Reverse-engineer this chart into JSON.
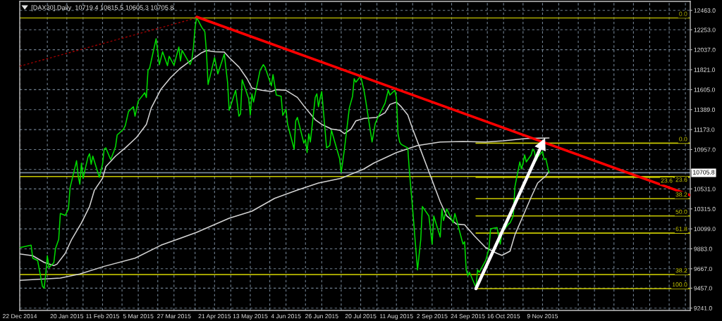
{
  "chart_data": {
    "type": "line",
    "title": "[DAX30],Daily  10719.4 10815.5 10605.3 10705.8",
    "xlim": [
      "2014-12-22",
      "2016-02-08"
    ],
    "ylim": [
      9216,
      12560
    ],
    "xticks": [
      {
        "value": "2014-12-22",
        "label": "22 Dec 2014"
      },
      {
        "value": "2015-01-08",
        "label": null
      },
      {
        "value": "2015-01-20",
        "label": "20 Jan 2015"
      },
      {
        "value": "2015-01-30",
        "label": null
      },
      {
        "value": "2015-02-11",
        "label": "11 Feb 2015"
      },
      {
        "value": "2015-02-23",
        "label": null
      },
      {
        "value": "2015-03-05",
        "label": "5 Mar 2015"
      },
      {
        "value": "2015-03-17",
        "label": null
      },
      {
        "value": "2015-03-27",
        "label": "27 Mar 2015"
      },
      {
        "value": "2015-04-09",
        "label": null
      },
      {
        "value": "2015-04-21",
        "label": "21 Apr 2015"
      },
      {
        "value": "2015-05-01",
        "label": null
      },
      {
        "value": "2015-05-13",
        "label": "13 May 2015"
      },
      {
        "value": "2015-05-25",
        "label": null
      },
      {
        "value": "2015-06-04",
        "label": "4 Jun 2015"
      },
      {
        "value": "2015-06-16",
        "label": null
      },
      {
        "value": "2015-06-26",
        "label": "26 Jun 2015"
      },
      {
        "value": "2015-07-08",
        "label": null
      },
      {
        "value": "2015-07-20",
        "label": "20 Jul 2015"
      },
      {
        "value": "2015-07-30",
        "label": null
      },
      {
        "value": "2015-08-11",
        "label": "11 Aug 2015"
      },
      {
        "value": "2015-08-21",
        "label": null
      },
      {
        "value": "2015-09-02",
        "label": "2 Sep 2015"
      },
      {
        "value": "2015-09-14",
        "label": null
      },
      {
        "value": "2015-09-24",
        "label": "24 Sep 2015"
      },
      {
        "value": "2015-10-06",
        "label": null
      },
      {
        "value": "2015-10-16",
        "label": "16 Oct 2015"
      },
      {
        "value": "2015-10-28",
        "label": null
      },
      {
        "value": "2015-11-09",
        "label": "9 Nov 2015"
      },
      {
        "value": "2015-11-19",
        "label": null
      },
      {
        "value": "2015-12-01",
        "label": null
      },
      {
        "value": "2015-12-11",
        "label": null
      },
      {
        "value": "2015-12-23",
        "label": null
      },
      {
        "value": "2016-01-04",
        "label": null
      },
      {
        "value": "2016-01-14",
        "label": null
      },
      {
        "value": "2016-01-26",
        "label": null
      },
      {
        "value": "2016-02-05",
        "label": null
      }
    ],
    "yticks": [
      {
        "value": 9241,
        "label": "9241.0"
      },
      {
        "value": 9457,
        "label": "9457.0"
      },
      {
        "value": 9667,
        "label": "9667.0"
      },
      {
        "value": 9883,
        "label": "9883.0"
      },
      {
        "value": 10099,
        "label": "10099.0"
      },
      {
        "value": 10315,
        "label": "10315.0"
      },
      {
        "value": 10531,
        "label": "10531.0"
      },
      {
        "value": 10741,
        "label": null
      },
      {
        "value": 10957,
        "label": "10957.0"
      },
      {
        "value": 11173,
        "label": "11173.0"
      },
      {
        "value": 11389,
        "label": "11389.0"
      },
      {
        "value": 11605,
        "label": "11605.0"
      },
      {
        "value": 11821,
        "label": "11821.0"
      },
      {
        "value": 12037,
        "label": "12037.0"
      },
      {
        "value": 12253,
        "label": "12253.0"
      },
      {
        "value": 12463,
        "label": "12463.0"
      }
    ],
    "grid": true,
    "ref_lines": [
      {
        "axis": "y",
        "value": 10705.8,
        "label": "10705.8",
        "color": "#778899"
      }
    ],
    "series": [
      {
        "name": "0.0",
        "color": "#a8a800",
        "x": [
          "2014-12-22",
          "2016-02-08"
        ],
        "values": [
          12381,
          12381
        ]
      },
      {
        "name": "23.6",
        "color": "#c8c800",
        "x": [
          "2014-12-22",
          "2016-02-08"
        ],
        "values": [
          10665,
          10665
        ]
      },
      {
        "name": "38.2",
        "color": "#d8d800",
        "x": [
          "2014-12-22",
          "2016-02-08"
        ],
        "values": [
          9604,
          9604
        ]
      },
      {
        "name": "0.0",
        "color": "#c8c800",
        "x": [
          "2015-09-29",
          "2016-02-08"
        ],
        "values": [
          11026,
          11026
        ]
      },
      {
        "name": "23.6",
        "color": "#c8c800",
        "x": [
          "2015-09-29",
          "2016-02-08"
        ],
        "values": [
          10655,
          10655
        ]
      },
      {
        "name": "38.2",
        "color": "#c8c800",
        "x": [
          "2015-09-29",
          "2016-02-08"
        ],
        "values": [
          10425,
          10425
        ]
      },
      {
        "name": "50.0",
        "color": "#c8c800",
        "x": [
          "2015-09-29",
          "2016-02-08"
        ],
        "values": [
          10239,
          10239
        ]
      },
      {
        "name": "61.8",
        "color": "#c8c800",
        "x": [
          "2015-09-29",
          "2016-02-08"
        ],
        "values": [
          10053,
          10053
        ]
      },
      {
        "name": "100.0",
        "color": "#c8c800",
        "x": [
          "2015-09-29",
          "2016-02-08"
        ],
        "values": [
          9452,
          9452
        ]
      },
      {
        "color": "#d3d3d3",
        "x": [
          "2014-12-22",
          "2015-01-16",
          "2015-01-28",
          "2015-02-12",
          "2015-03-03",
          "2015-03-19",
          "2015-04-10",
          "2015-04-30",
          "2015-05-14",
          "2015-05-28",
          "2015-06-11",
          "2015-06-24",
          "2015-07-08",
          "2015-07-22",
          "2015-07-28",
          "2015-08-11",
          "2015-08-24",
          "2015-09-07",
          "2015-09-21",
          "2015-10-05",
          "2015-10-16",
          "2015-10-30",
          "2015-11-13"
        ],
        "values": [
          9541,
          9566,
          9610,
          9693,
          9782,
          9922,
          10061,
          10214,
          10290,
          10429,
          10518,
          10595,
          10646,
          10747,
          10810,
          10924,
          11001,
          11039,
          11044,
          11039,
          11052,
          11077,
          11082
        ]
      },
      {
        "color": "#d3d3d3",
        "x": [
          "2014-12-22",
          "2014-12-30",
          "2015-01-06",
          "2015-01-12",
          "2015-01-14",
          "2015-01-19",
          "2015-01-23",
          "2015-01-29",
          "2015-02-03",
          "2015-02-06",
          "2015-02-11",
          "2015-02-13",
          "2015-02-19",
          "2015-02-25",
          "2015-03-04",
          "2015-03-10",
          "2015-03-13",
          "2015-03-19",
          "2015-03-25",
          "2015-03-31",
          "2015-04-07",
          "2015-04-13",
          "2015-04-16",
          "2015-04-21",
          "2015-04-27",
          "2015-04-30",
          "2015-05-06",
          "2015-05-11",
          "2015-05-14",
          "2015-05-20",
          "2015-05-26",
          "2015-05-29",
          "2015-06-04",
          "2015-06-11",
          "2015-06-16",
          "2015-06-22",
          "2015-06-26",
          "2015-07-02",
          "2015-07-07",
          "2015-07-10",
          "2015-07-14",
          "2015-07-17",
          "2015-07-22",
          "2015-07-30",
          "2015-08-04",
          "2015-08-07",
          "2015-08-11",
          "2015-08-14",
          "2015-08-18",
          "2015-08-21",
          "2015-08-26",
          "2015-09-01",
          "2015-09-07",
          "2015-09-11",
          "2015-09-17",
          "2015-09-22",
          "2015-09-28",
          "2015-10-05",
          "2015-10-12",
          "2015-10-15",
          "2015-10-20",
          "2015-10-23",
          "2015-10-28",
          "2015-11-02",
          "2015-11-06",
          "2015-11-11",
          "2015-11-13"
        ],
        "values": [
          9828,
          9808,
          9736,
          9701,
          9718,
          9833,
          9985,
          10163,
          10341,
          10518,
          10646,
          10772,
          10886,
          10975,
          11090,
          11229,
          11407,
          11610,
          11737,
          11838,
          11928,
          12004,
          12029,
          12016,
          12011,
          11953,
          11851,
          11724,
          11623,
          11598,
          11585,
          11605,
          11598,
          11521,
          11407,
          11280,
          11229,
          11179,
          11166,
          11128,
          11179,
          11267,
          11293,
          11305,
          11356,
          11445,
          11471,
          11420,
          11331,
          11179,
          10950,
          10671,
          10391,
          10239,
          10150,
          10143,
          10023,
          9896,
          9833,
          9812,
          9858,
          10036,
          10239,
          10442,
          10595,
          10671,
          10722
        ]
      },
      {
        "color": "#00dd00",
        "x": [
          "2014-12-22",
          "2014-12-29",
          "2014-12-30",
          "2015-01-02",
          "2015-01-05",
          "2015-01-06",
          "2015-01-07",
          "2015-01-08",
          "2015-01-09",
          "2015-01-12",
          "2015-01-13",
          "2015-01-15",
          "2015-01-16",
          "2015-01-19",
          "2015-01-21",
          "2015-01-22",
          "2015-01-26",
          "2015-01-27",
          "2015-01-28",
          "2015-01-29",
          "2015-01-30",
          "2015-02-02",
          "2015-02-03",
          "2015-02-04",
          "2015-02-05",
          "2015-02-09",
          "2015-02-11",
          "2015-02-12",
          "2015-02-13",
          "2015-02-16",
          "2015-02-18",
          "2015-02-19",
          "2015-02-20",
          "2015-02-24",
          "2015-02-25",
          "2015-02-27",
          "2015-03-02",
          "2015-03-03",
          "2015-03-05",
          "2015-03-09",
          "2015-03-10",
          "2015-03-11",
          "2015-03-12",
          "2015-03-16",
          "2015-03-18",
          "2015-03-20",
          "2015-03-23",
          "2015-03-24",
          "2015-03-27",
          "2015-03-30",
          "2015-03-31",
          "2015-04-01",
          "2015-04-06",
          "2015-04-07",
          "2015-04-08",
          "2015-04-09",
          "2015-04-10",
          "2015-04-13",
          "2015-04-15",
          "2015-04-16",
          "2015-04-17",
          "2015-04-21",
          "2015-04-23",
          "2015-04-27",
          "2015-04-29",
          "2015-04-30",
          "2015-05-04",
          "2015-05-06",
          "2015-05-07",
          "2015-05-08",
          "2015-05-12",
          "2015-05-13",
          "2015-05-14",
          "2015-05-15",
          "2015-05-19",
          "2015-05-21",
          "2015-05-22",
          "2015-05-26",
          "2015-05-27",
          "2015-05-29",
          "2015-06-01",
          "2015-06-02",
          "2015-06-04",
          "2015-06-05",
          "2015-06-09",
          "2015-06-10",
          "2015-06-11",
          "2015-06-15",
          "2015-06-16",
          "2015-06-17",
          "2015-06-18",
          "2015-06-19",
          "2015-06-22",
          "2015-06-23",
          "2015-06-24",
          "2015-06-25",
          "2015-06-26",
          "2015-06-29",
          "2015-07-01",
          "2015-07-02",
          "2015-07-03",
          "2015-07-07",
          "2015-07-08",
          "2015-07-10",
          "2015-07-13",
          "2015-07-15",
          "2015-07-16",
          "2015-07-17",
          "2015-07-20",
          "2015-07-22",
          "2015-07-23",
          "2015-07-27",
          "2015-07-29",
          "2015-07-31",
          "2015-08-04",
          "2015-08-06",
          "2015-08-07",
          "2015-08-10",
          "2015-08-11",
          "2015-08-12",
          "2015-08-13",
          "2015-08-14",
          "2015-08-18",
          "2015-08-19",
          "2015-08-21",
          "2015-08-24",
          "2015-08-26",
          "2015-08-27",
          "2015-08-31",
          "2015-09-02",
          "2015-09-03",
          "2015-09-07",
          "2015-09-08",
          "2015-09-09",
          "2015-09-11",
          "2015-09-15",
          "2015-09-16",
          "2015-09-17",
          "2015-09-21",
          "2015-09-22",
          "2015-09-23",
          "2015-09-24",
          "2015-09-25",
          "2015-09-29",
          "2015-09-30",
          "2015-10-01",
          "2015-10-05",
          "2015-10-07",
          "2015-10-08",
          "2015-10-12",
          "2015-10-14",
          "2015-10-15",
          "2015-10-19",
          "2015-10-20",
          "2015-10-22",
          "2015-10-23",
          "2015-10-26",
          "2015-10-27",
          "2015-10-28",
          "2015-10-29",
          "2015-10-30",
          "2015-11-02",
          "2015-11-03",
          "2015-11-04",
          "2015-11-05",
          "2015-11-06",
          "2015-11-09",
          "2015-11-10",
          "2015-11-11",
          "2015-11-13"
        ],
        "values": [
          9896,
          9922,
          9782,
          9757,
          9477,
          9457,
          9604,
          9808,
          9680,
          9732,
          9884,
          9985,
          10265,
          10244,
          10315,
          10544,
          10836,
          10671,
          10582,
          10810,
          10646,
          10874,
          10912,
          10798,
          10886,
          10658,
          10798,
          10962,
          10975,
          10848,
          10937,
          10988,
          11115,
          11179,
          11217,
          11369,
          11420,
          11318,
          11483,
          11572,
          11521,
          11813,
          11838,
          12156,
          11876,
          12016,
          11864,
          11966,
          11869,
          12067,
          11915,
          12029,
          11876,
          11928,
          12067,
          12283,
          12385,
          12283,
          12232,
          12016,
          11661,
          11953,
          11775,
          11991,
          11686,
          11381,
          11598,
          11318,
          11343,
          11712,
          11509,
          11331,
          11560,
          11471,
          11813,
          11876,
          11851,
          11648,
          11768,
          11547,
          11534,
          11326,
          11394,
          11229,
          10962,
          11267,
          11305,
          11026,
          11065,
          10924,
          11128,
          11039,
          11521,
          11560,
          11420,
          11509,
          11585,
          10975,
          11001,
          11166,
          11103,
          10860,
          10709,
          10962,
          11407,
          11534,
          11724,
          11686,
          11750,
          11600,
          11496,
          11039,
          11242,
          11318,
          11458,
          11598,
          11547,
          11598,
          11521,
          11128,
          11039,
          11013,
          10975,
          10722,
          10315,
          9655,
          9985,
          10341,
          10239,
          9934,
          10239,
          10010,
          10315,
          10189,
          10315,
          10163,
          10265,
          10201,
          9934,
          9960,
          9655,
          9591,
          9629,
          9465,
          9655,
          9629,
          9757,
          9884,
          10099,
          10112,
          9934,
          10061,
          10150,
          10163,
          10239,
          10556,
          10823,
          10747,
          10810,
          10899,
          10823,
          10899,
          10962,
          10937,
          10836,
          10874,
          10937,
          10848,
          10861,
          10706
        ]
      },
      {
        "color": "#a00000",
        "x": [
          "2014-12-22",
          "2015-04-09"
        ],
        "values": [
          11859,
          12377
        ],
        "line_style": "dotted"
      },
      {
        "color": "#ff0000",
        "x": [
          "2015-04-10",
          "2016-02-08"
        ],
        "values": [
          12392,
          10462
        ]
      },
      {
        "color": "#ffffff",
        "x": [
          "2015-09-29",
          "2015-11-09"
        ],
        "values": [
          9452,
          11021
        ],
        "marker": "triangle"
      }
    ]
  }
}
